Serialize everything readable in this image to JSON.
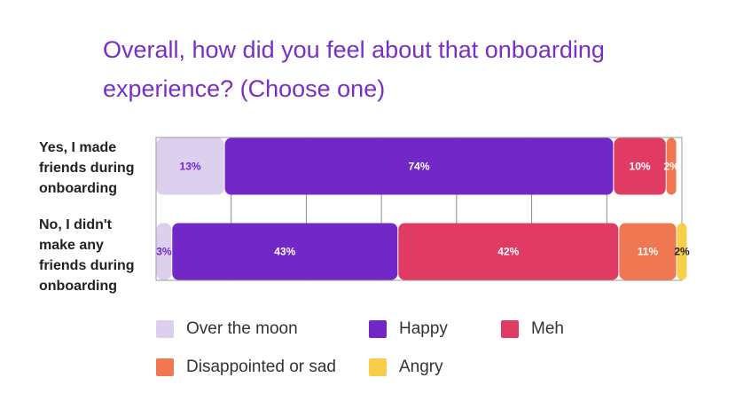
{
  "title": "Overall, how did you feel about that onboarding experience?  (Choose one)",
  "colors": {
    "Over the moon": "#ddd0ef",
    "Happy": "#7228c6",
    "Meh": "#e03b63",
    "Disappointed or sad": "#ef7752",
    "Angry": "#f7cd49",
    "label_light": "#ffffff",
    "label_dark_purple": "#7228c6",
    "label_dark": "#222222"
  },
  "chart_data": {
    "type": "bar",
    "orientation": "horizontal",
    "stacked": true,
    "xlim": [
      0,
      100
    ],
    "grid": true,
    "categories": [
      "Yes, I made friends during onboarding",
      "No, I didn't make any friends during onboarding"
    ],
    "series": [
      {
        "name": "Over the moon",
        "values": [
          13,
          3
        ]
      },
      {
        "name": "Happy",
        "values": [
          74,
          43
        ]
      },
      {
        "name": "Meh",
        "values": [
          10,
          42
        ]
      },
      {
        "name": "Disappointed or sad",
        "values": [
          2,
          11
        ]
      },
      {
        "name": "Angry",
        "values": [
          0,
          2
        ]
      }
    ],
    "data_labels": [
      [
        "13%",
        "74%",
        "10%",
        "2%",
        ""
      ],
      [
        "3%",
        "43%",
        "42%",
        "11%",
        "2%"
      ]
    ],
    "legend_position": "bottom"
  },
  "row_label_lines": [
    [
      "Yes, I made",
      "friends during",
      "onboarding"
    ],
    [
      "No, I didn't",
      "make any",
      "friends during",
      "onboarding"
    ]
  ],
  "legend": [
    "Over the moon",
    "Happy",
    "Meh",
    "Disappointed or sad",
    "Angry"
  ]
}
